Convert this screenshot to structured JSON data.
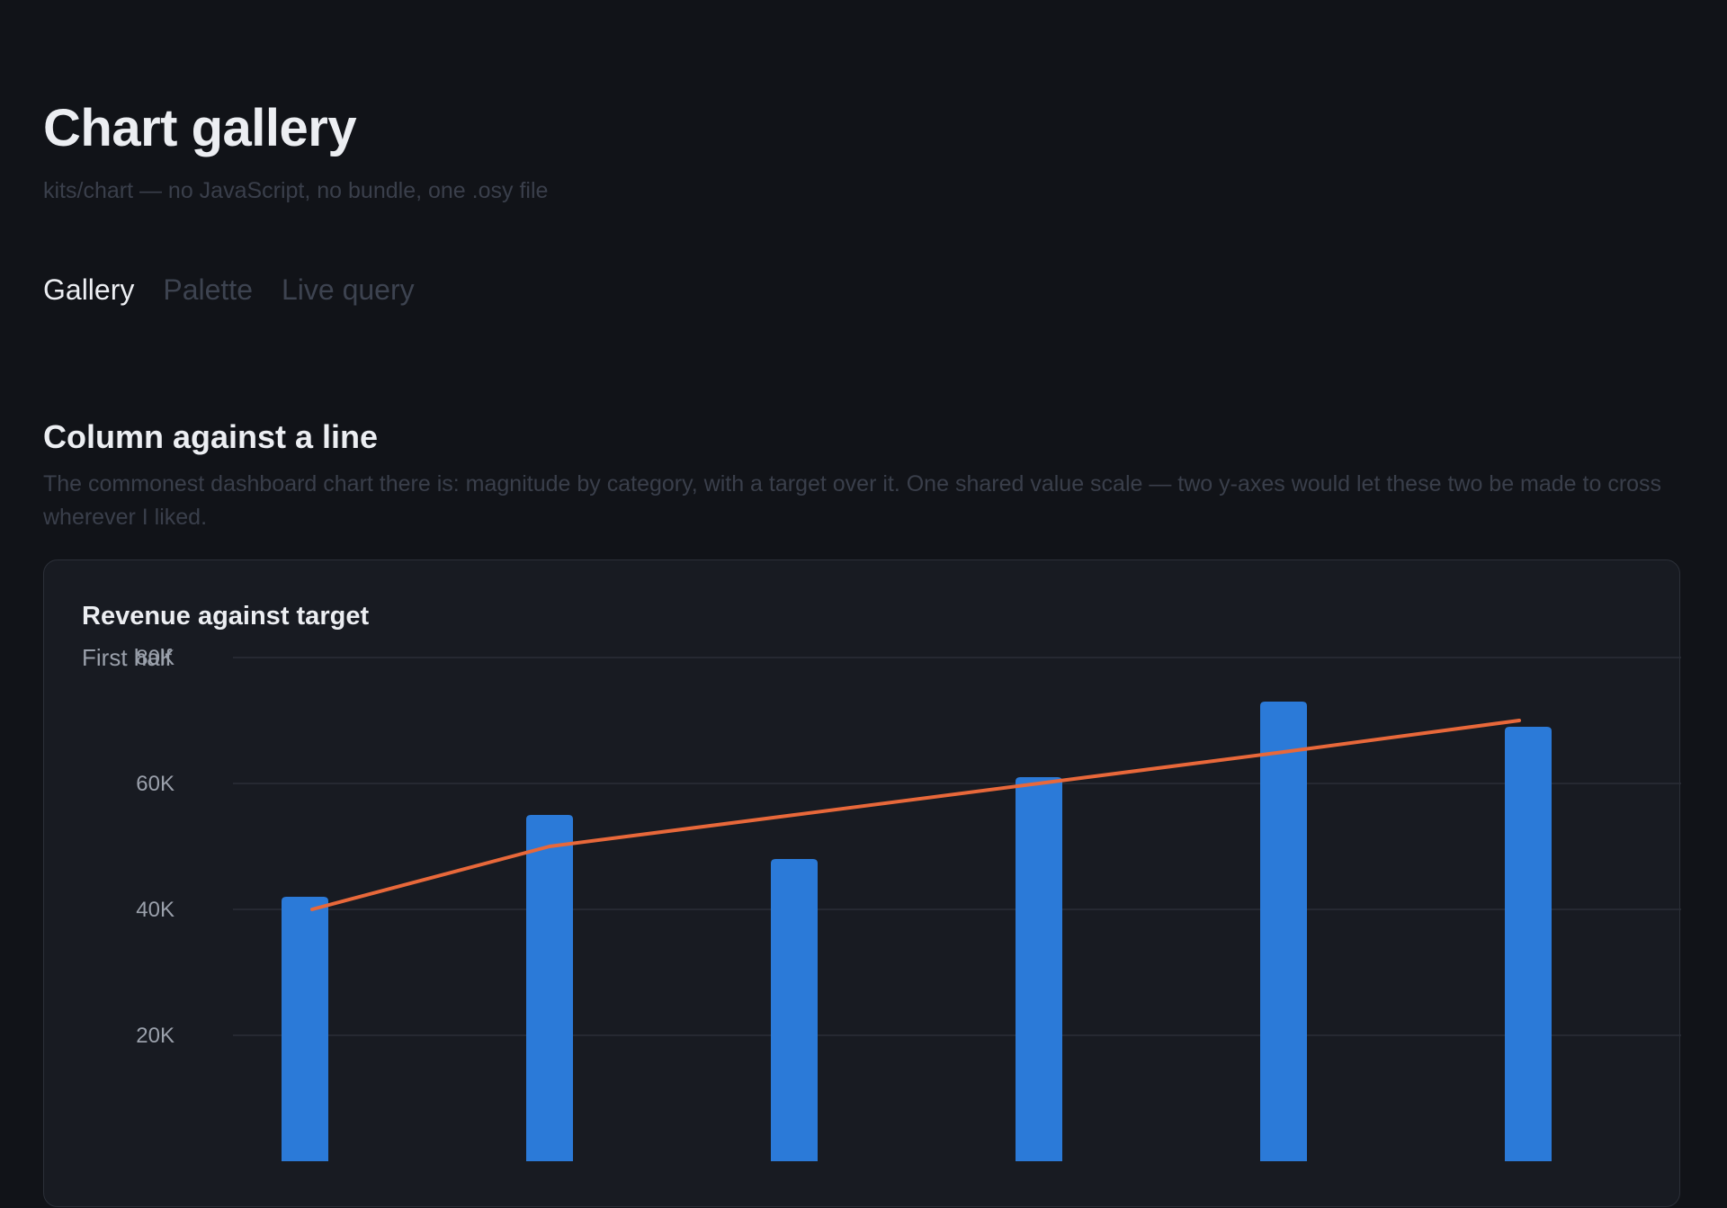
{
  "header": {
    "title": "Chart gallery",
    "subtitle": "kits/chart — no JavaScript, no bundle, one .osy file"
  },
  "tabs": [
    {
      "label": "Gallery",
      "active": true
    },
    {
      "label": "Palette",
      "active": false
    },
    {
      "label": "Live query",
      "active": false
    }
  ],
  "section": {
    "heading": "Column against a line",
    "description": "The commonest dashboard chart there is: magnitude by category, with a target over it. One shared value scale — two y-axes would let these two be made to cross wherever I liked."
  },
  "colors": {
    "background": "#111318",
    "card": "#181b22",
    "bar": "#2b7ad8",
    "line": "#e8683a",
    "grid": "#2a2e37"
  },
  "chart_data": {
    "type": "bar",
    "title": "Revenue against target",
    "subtitle": "First half",
    "yticks": [
      "20K",
      "40K",
      "60K",
      "80K"
    ],
    "ylim": [
      0,
      80000
    ],
    "grid": true,
    "series": [
      {
        "kind": "bar",
        "values": [
          42000,
          55000,
          48000,
          61000,
          73000,
          69000
        ]
      },
      {
        "kind": "line",
        "values": [
          40000,
          50000,
          55000,
          60000,
          65000,
          70000
        ]
      }
    ]
  }
}
